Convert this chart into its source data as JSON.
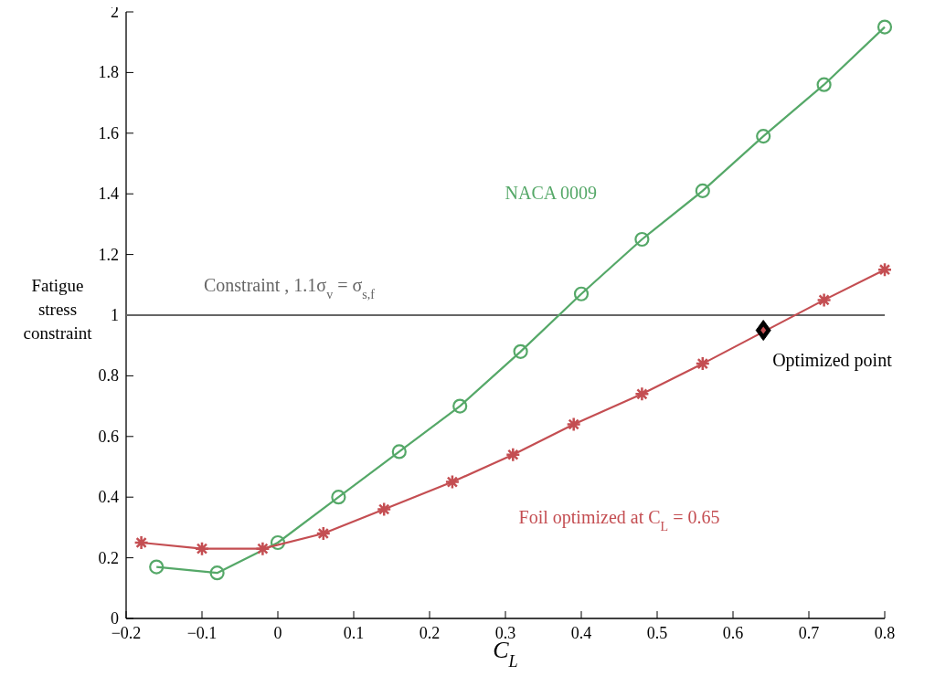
{
  "chart_data": {
    "type": "line",
    "xlabel": "C$_{L}$",
    "ylabel": "Fatigue stress constraint",
    "xlim": [
      -0.2,
      0.8
    ],
    "xticks": [
      {
        "value": -0.2,
        "label": "−0.2"
      },
      {
        "value": -0.1,
        "label": "−0.1"
      },
      0,
      0.1,
      0.2,
      0.3,
      0.4,
      0.5,
      0.6,
      0.7,
      0.8
    ],
    "ylim": [
      0,
      2
    ],
    "yticks": [
      0,
      0.2,
      0.4,
      0.6,
      0.8,
      1,
      1.2,
      1.4,
      1.6,
      1.8,
      2
    ],
    "grid": false,
    "line_style": "solid",
    "ref_lines": [
      {
        "axis": "y",
        "value": 1,
        "label": "Constraint , 1.1σ$_{v}$ = σ$_{s,f}$",
        "color": "#666666"
      }
    ],
    "series": [
      {
        "name": "NACA 0009",
        "color": "#55a868",
        "marker": "circle",
        "x": [
          -0.16,
          -0.08,
          0,
          0.08,
          0.16,
          0.24,
          0.32,
          0.4,
          0.48,
          0.56,
          0.64,
          0.72,
          0.8
        ],
        "values": [
          0.17,
          0.15,
          0.25,
          0.4,
          0.55,
          0.7,
          0.88,
          1.07,
          1.25,
          1.41,
          1.59,
          1.76,
          1.95
        ]
      },
      {
        "name": "Foil optimized at C$_{L}$ = 0.65",
        "color": "#c44e52",
        "marker": "cross",
        "x": [
          -0.18,
          -0.1,
          -0.02,
          0.06,
          0.14,
          0.23,
          0.31,
          0.39,
          0.48,
          0.56,
          0.64,
          0.72,
          0.8
        ],
        "values": [
          0.25,
          0.23,
          0.23,
          0.28,
          0.36,
          0.45,
          0.54,
          0.64,
          0.74,
          0.84,
          null,
          1.05,
          1.15
        ]
      },
      {
        "name": "Optimized point",
        "type": "scatter",
        "color": "#000000",
        "marker": "diamond",
        "x": [
          0.64
        ],
        "values": [
          0.95
        ]
      }
    ]
  }
}
